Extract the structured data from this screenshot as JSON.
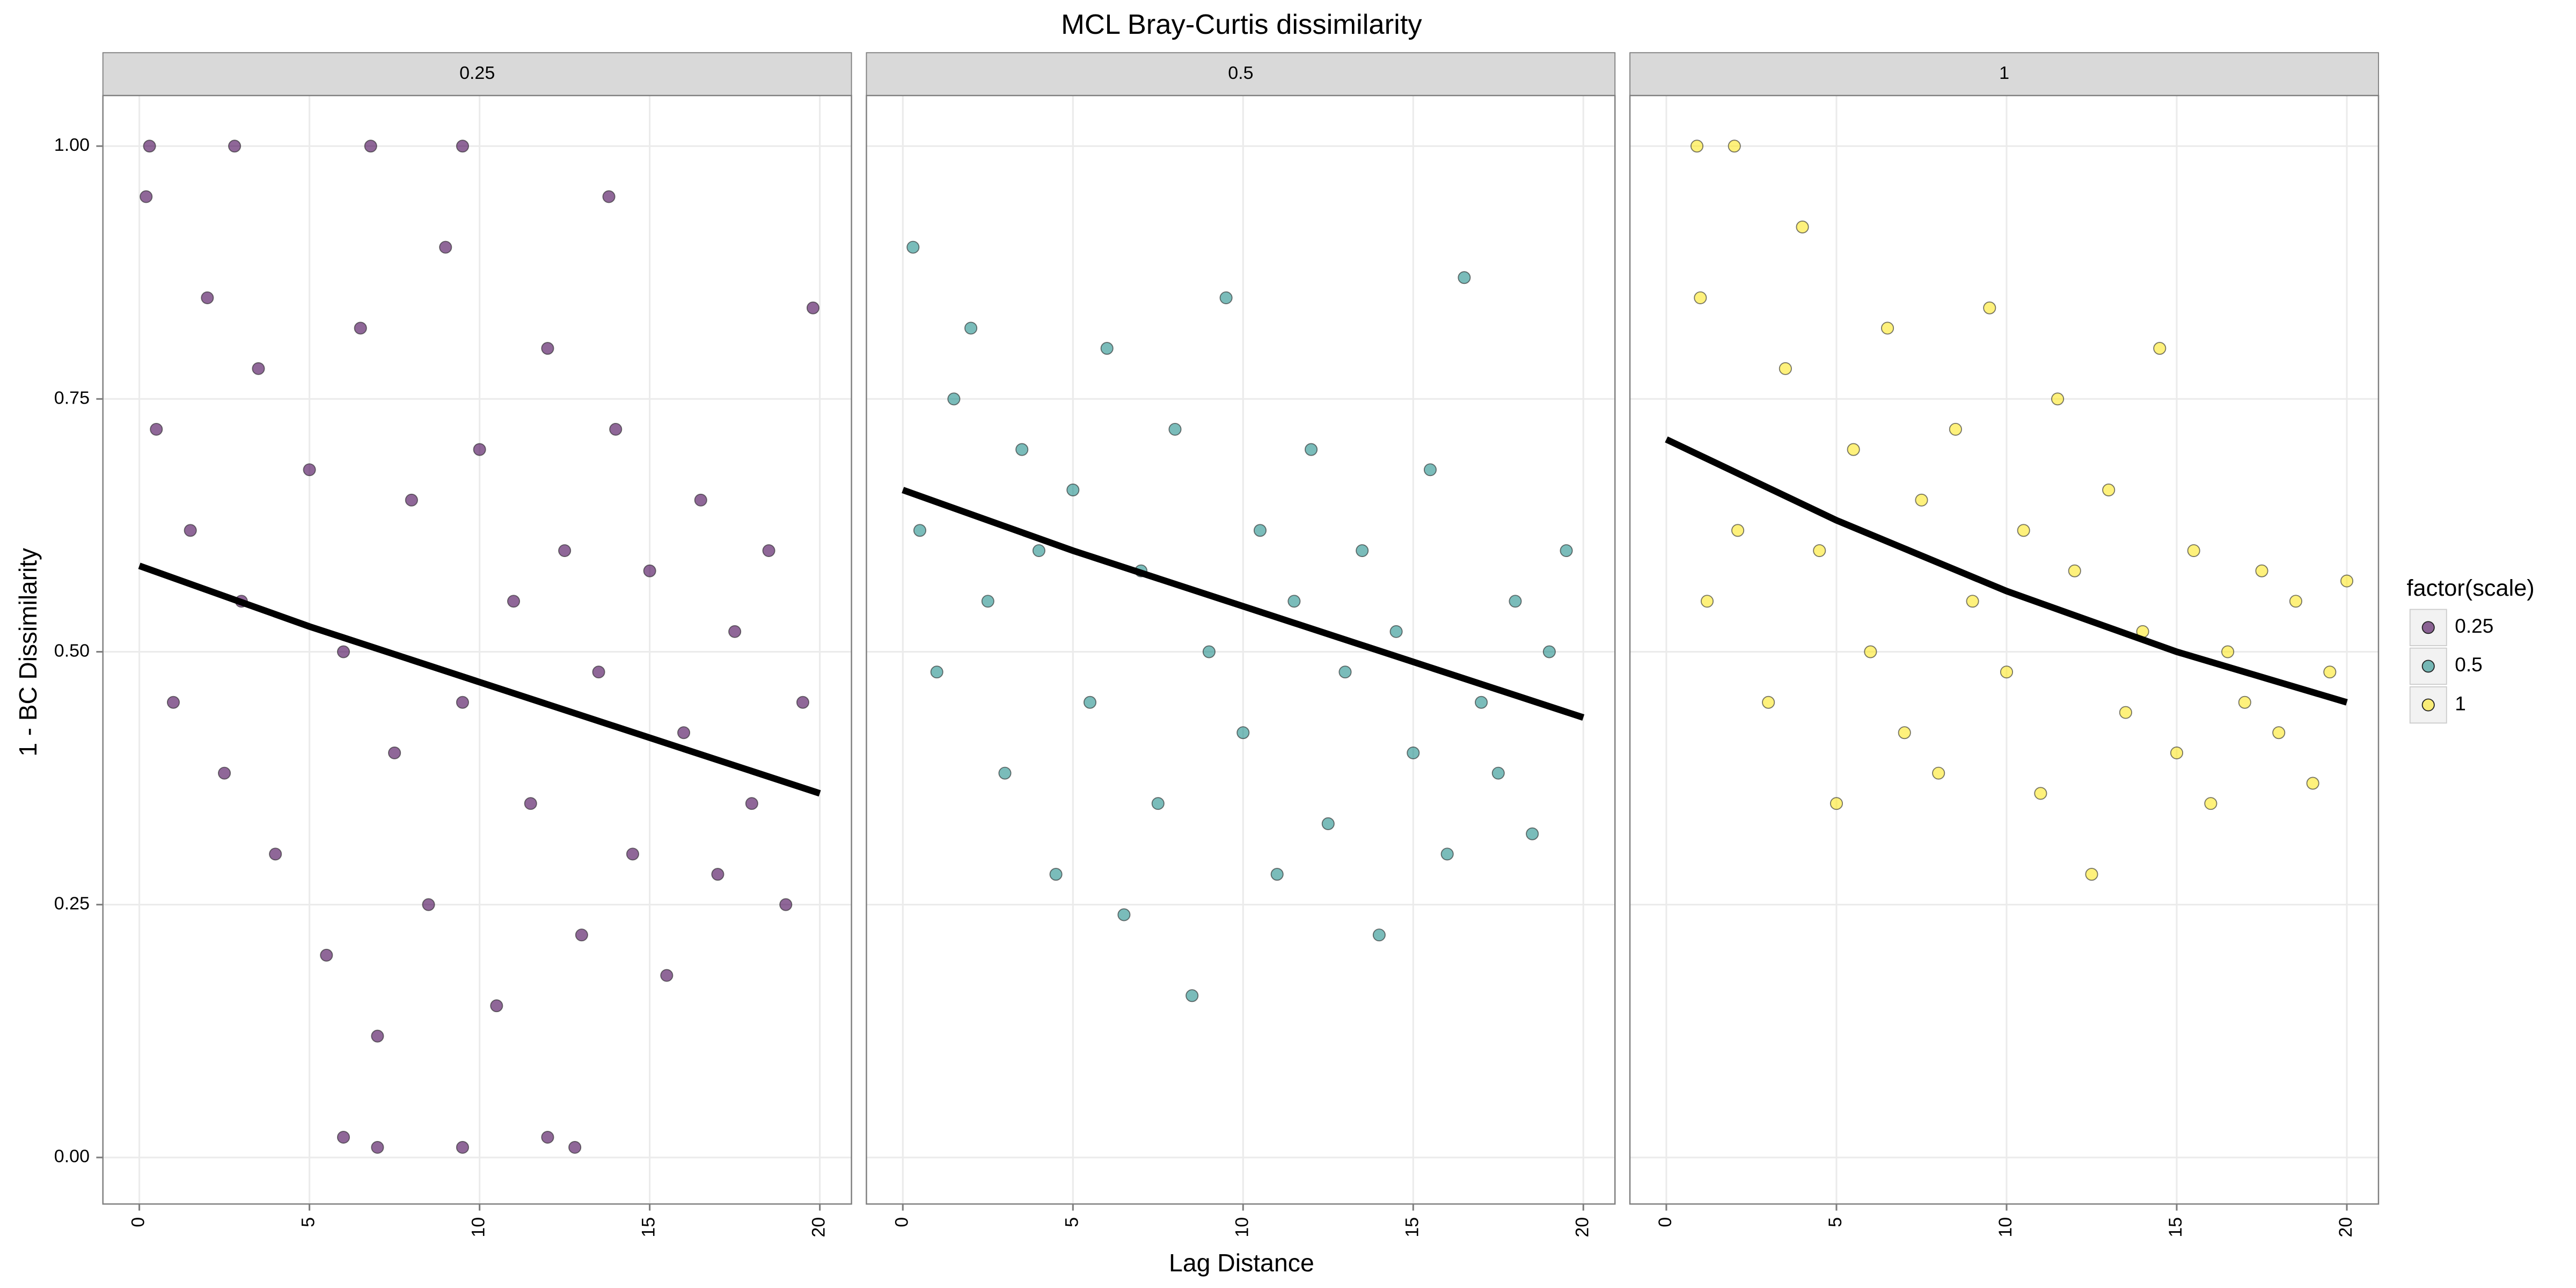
{
  "chart_data": {
    "type": "scatter",
    "title": "MCL Bray-Curtis dissimilarity",
    "xlabel": "Lag Distance",
    "ylabel": "1 - BC Dissimilarity",
    "legend_title": "factor(scale)",
    "legend_position": "right",
    "grid": true,
    "line_color": "#000000",
    "xlim": [
      -1.07,
      20.93
    ],
    "ylim": [
      -0.046,
      1.05
    ],
    "xticks": [
      0,
      5,
      10,
      15,
      20
    ],
    "yticks": [
      {
        "value": 0,
        "label": "0.00"
      },
      {
        "value": 0.25,
        "label": "0.25"
      },
      {
        "value": 0.5,
        "label": "0.50"
      },
      {
        "value": 0.75,
        "label": "0.75"
      },
      {
        "value": 1,
        "label": "1.00"
      }
    ],
    "series": [
      {
        "name": "0.25",
        "color": "#440154",
        "x": [
          0.2,
          0.5,
          1,
          1.5,
          2,
          2.5,
          3,
          3.5,
          4,
          5,
          5.5,
          6,
          6.5,
          7,
          7.5,
          8,
          8.5,
          9,
          9.5,
          10,
          10.5,
          11,
          11.5,
          12,
          12.5,
          13,
          13.5,
          14,
          14.5,
          15,
          15.5,
          16,
          16.5,
          17,
          17.5,
          18,
          18.5,
          19,
          19.5,
          19.8,
          6,
          7,
          9.5,
          12,
          12.8,
          0.3,
          2.8,
          6.8,
          9.5,
          13.8
        ],
        "y": [
          0.95,
          0.72,
          0.45,
          0.62,
          0.85,
          0.38,
          0.55,
          0.78,
          0.3,
          0.68,
          0.2,
          0.5,
          0.82,
          0.12,
          0.4,
          0.65,
          0.25,
          0.9,
          0.45,
          0.7,
          0.15,
          0.55,
          0.35,
          0.8,
          0.6,
          0.22,
          0.48,
          0.72,
          0.3,
          0.58,
          0.18,
          0.42,
          0.65,
          0.28,
          0.52,
          0.35,
          0.6,
          0.25,
          0.45,
          0.84,
          0.02,
          0.01,
          0.01,
          0.02,
          0.01,
          1,
          1,
          1,
          1,
          0.95
        ],
        "trend_x": [
          0,
          5,
          10,
          15,
          20
        ],
        "trend_y": [
          0.585,
          0.525,
          0.47,
          0.415,
          0.36
        ]
      },
      {
        "name": "0.5",
        "color": "#21908C",
        "x": [
          0.3,
          0.5,
          1,
          1.5,
          2,
          2.5,
          3,
          3.5,
          4,
          4.5,
          5,
          5.5,
          6,
          6.5,
          7,
          7.5,
          8,
          8.5,
          9,
          9.5,
          10,
          10.5,
          11,
          11.5,
          12,
          12.5,
          13,
          13.5,
          14,
          14.5,
          15,
          15.5,
          16,
          16.5,
          17,
          17.5,
          18,
          18.5,
          19,
          19.5
        ],
        "y": [
          0.9,
          0.62,
          0.48,
          0.75,
          0.82,
          0.55,
          0.38,
          0.7,
          0.6,
          0.28,
          0.66,
          0.45,
          0.8,
          0.24,
          0.58,
          0.35,
          0.72,
          0.16,
          0.5,
          0.85,
          0.42,
          0.62,
          0.28,
          0.55,
          0.7,
          0.33,
          0.48,
          0.6,
          0.22,
          0.52,
          0.4,
          0.68,
          0.3,
          0.87,
          0.45,
          0.38,
          0.55,
          0.32,
          0.5,
          0.6
        ],
        "trend_x": [
          0,
          5,
          10,
          15,
          20
        ],
        "trend_y": [
          0.66,
          0.6,
          0.545,
          0.49,
          0.435
        ]
      },
      {
        "name": "1",
        "color": "#FDE725",
        "x": [
          0.9,
          1,
          1.2,
          2,
          2.1,
          3,
          3.5,
          4,
          4.5,
          5,
          5.5,
          6,
          6.5,
          7,
          7.5,
          8,
          8.5,
          9,
          9.5,
          10,
          10.5,
          11,
          11.5,
          12,
          12.5,
          13,
          13.5,
          14,
          14.5,
          15,
          15.5,
          16,
          16.5,
          17,
          17.5,
          18,
          18.5,
          19,
          19.5,
          20
        ],
        "y": [
          1,
          0.85,
          0.55,
          1,
          0.62,
          0.45,
          0.78,
          0.92,
          0.6,
          0.35,
          0.7,
          0.5,
          0.82,
          0.42,
          0.65,
          0.38,
          0.72,
          0.55,
          0.84,
          0.48,
          0.62,
          0.36,
          0.75,
          0.58,
          0.28,
          0.66,
          0.44,
          0.52,
          0.8,
          0.4,
          0.6,
          0.35,
          0.5,
          0.45,
          0.58,
          0.42,
          0.55,
          0.37,
          0.48,
          0.57
        ],
        "trend_x": [
          0,
          5,
          10,
          15,
          20
        ],
        "trend_y": [
          0.71,
          0.63,
          0.56,
          0.5,
          0.45
        ]
      }
    ]
  }
}
